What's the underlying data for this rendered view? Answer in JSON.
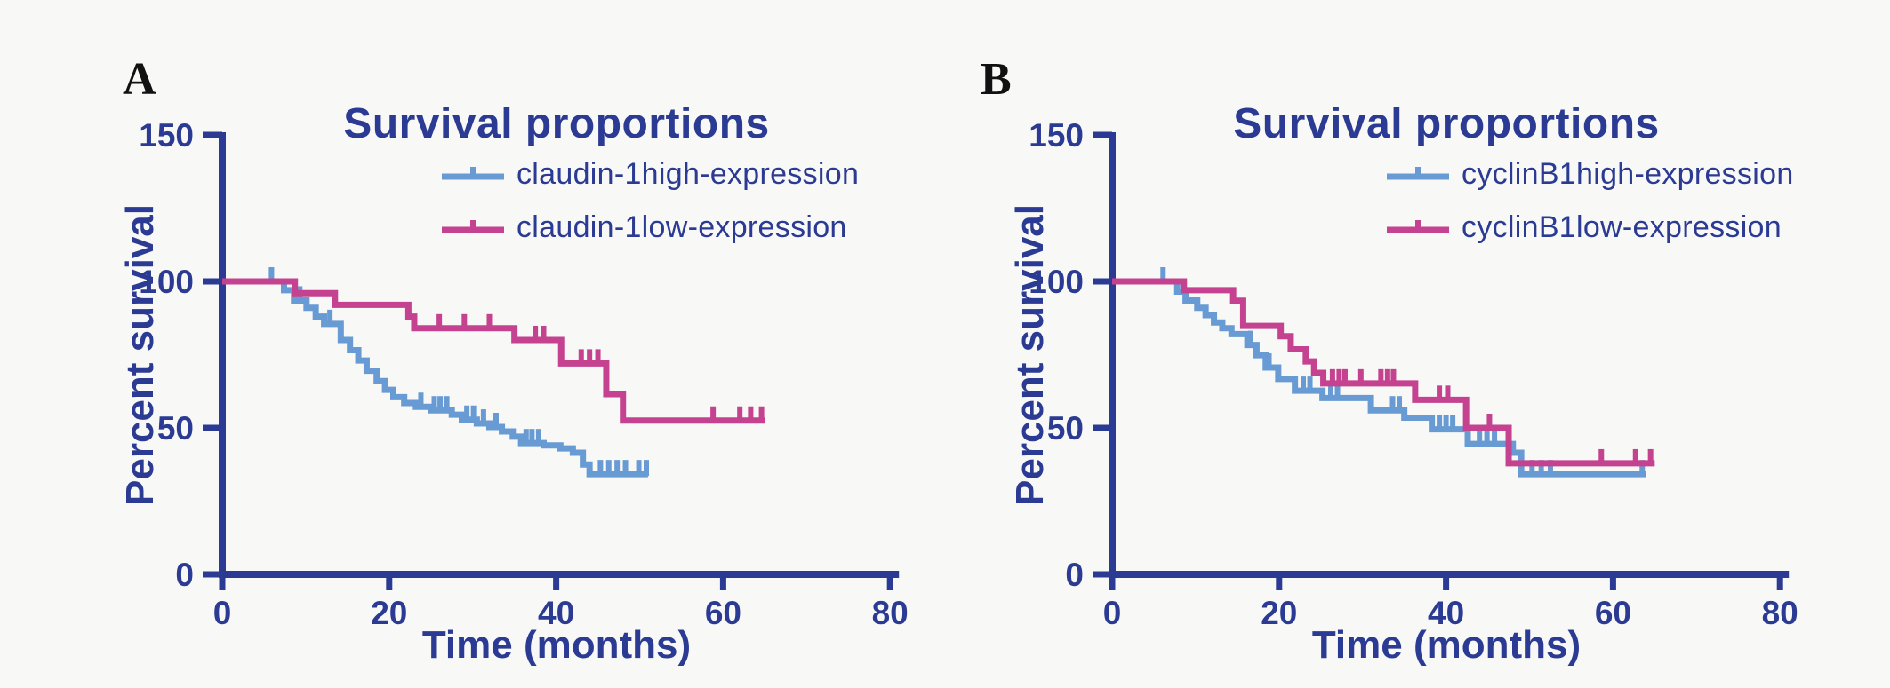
{
  "page": {
    "background": "#f8f8f6"
  },
  "colors": {
    "axis_text": "#2b3a92",
    "high_curve": "#689bd4",
    "low_curve": "#c4428f",
    "panel_label": "#111111",
    "background": "#f8f8f6"
  },
  "panels": [
    {
      "label": "A",
      "title": "Survival proportions",
      "y_label": "Percent survival",
      "x_label": "Time (months)",
      "legend": [
        {
          "name": "claudin-1high-expression",
          "series": "high_curve"
        },
        {
          "name": "claudin-1low-expression",
          "series": "low_curve"
        }
      ]
    },
    {
      "label": "B",
      "title": "Survival proportions",
      "y_label": "Percent survival",
      "x_label": "Time (months)",
      "legend": [
        {
          "name": "cyclinB1high-expression",
          "series": "high_curve"
        },
        {
          "name": "cyclinB1low-expression",
          "series": "low_curve"
        }
      ]
    }
  ],
  "chart_data": [
    {
      "type": "line",
      "subtype": "kaplan-meier-step",
      "title": "Survival proportions",
      "xlabel": "Time (months)",
      "ylabel": "Percent survival",
      "xlim": [
        0,
        80
      ],
      "ylim": [
        0,
        150
      ],
      "x_ticks": [
        0,
        20,
        40,
        60,
        80
      ],
      "y_ticks": [
        0,
        50,
        100,
        150
      ],
      "grid": false,
      "legend_position": "upper right",
      "series": [
        {
          "name": "claudin-1high-expression",
          "color": "high_curve",
          "points": [
            [
              0,
              100
            ],
            [
              7.4,
              97
            ],
            [
              8.6,
              93.5
            ],
            [
              10.1,
              91
            ],
            [
              11.2,
              88
            ],
            [
              12.2,
              85.5
            ],
            [
              14.2,
              80
            ],
            [
              15.3,
              76.5
            ],
            [
              16.3,
              73
            ],
            [
              17.3,
              69.5
            ],
            [
              18.5,
              66
            ],
            [
              19.5,
              63
            ],
            [
              20.5,
              60.5
            ],
            [
              21.8,
              58.5
            ],
            [
              23.2,
              57.2
            ],
            [
              25,
              56
            ],
            [
              27.5,
              54.5
            ],
            [
              28.7,
              52.8
            ],
            [
              30.5,
              51.5
            ],
            [
              32,
              50.3
            ],
            [
              33.5,
              48.8
            ],
            [
              34.8,
              47
            ],
            [
              35.8,
              44.8
            ],
            [
              38.5,
              44
            ],
            [
              40.5,
              43
            ],
            [
              42,
              41.5
            ],
            [
              43.2,
              37.5
            ],
            [
              44,
              34.2
            ],
            [
              51,
              34.2
            ]
          ],
          "censors": [
            [
              5.9,
              100
            ],
            [
              9.3,
              93.5
            ],
            [
              12.9,
              85.5
            ],
            [
              23.8,
              57.2
            ],
            [
              25.4,
              56
            ],
            [
              26.1,
              56
            ],
            [
              26.9,
              56
            ],
            [
              29.3,
              52.8
            ],
            [
              30.1,
              52.8
            ],
            [
              31.3,
              51.5
            ],
            [
              32.8,
              50.3
            ],
            [
              36.4,
              44.8
            ],
            [
              37.1,
              44.8
            ],
            [
              37.9,
              44.8
            ],
            [
              45.3,
              34.2
            ],
            [
              46.3,
              34.2
            ],
            [
              47.3,
              34.2
            ],
            [
              48.3,
              34.2
            ],
            [
              49.9,
              34.2
            ],
            [
              50.8,
              34.2
            ]
          ]
        },
        {
          "name": "claudin-1low-expression",
          "color": "low_curve",
          "points": [
            [
              0,
              100
            ],
            [
              8.7,
              96
            ],
            [
              13.5,
              92
            ],
            [
              22.3,
              88
            ],
            [
              23,
              84
            ],
            [
              35,
              80
            ],
            [
              40.6,
              72
            ],
            [
              46,
              61.5
            ],
            [
              48,
              52.5
            ],
            [
              65,
              52.5
            ]
          ],
          "censors": [
            [
              26,
              84
            ],
            [
              29,
              84
            ],
            [
              32,
              84
            ],
            [
              37.5,
              80
            ],
            [
              38.5,
              80
            ],
            [
              43,
              72
            ],
            [
              44,
              72
            ],
            [
              45,
              72
            ],
            [
              58.8,
              52.5
            ],
            [
              62,
              52.5
            ],
            [
              63.3,
              52.5
            ],
            [
              64.6,
              52.5
            ]
          ]
        }
      ]
    },
    {
      "type": "line",
      "subtype": "kaplan-meier-step",
      "title": "Survival proportions",
      "xlabel": "Time (months)",
      "ylabel": "Percent survival",
      "xlim": [
        0,
        80
      ],
      "ylim": [
        0,
        150
      ],
      "x_ticks": [
        0,
        20,
        40,
        60,
        80
      ],
      "y_ticks": [
        0,
        50,
        100,
        150
      ],
      "grid": false,
      "legend_position": "upper right",
      "series": [
        {
          "name": "cyclinB1high-expression",
          "color": "high_curve",
          "points": [
            [
              0,
              100
            ],
            [
              7.8,
              96.5
            ],
            [
              8.8,
              93.5
            ],
            [
              10.2,
              91
            ],
            [
              11.2,
              88.5
            ],
            [
              12.2,
              86
            ],
            [
              13.2,
              84
            ],
            [
              14.3,
              82
            ],
            [
              16.2,
              78.3
            ],
            [
              17.3,
              74.8
            ],
            [
              18.4,
              70.6
            ],
            [
              19.9,
              66.7
            ],
            [
              21.9,
              62.7
            ],
            [
              25.2,
              60.2
            ],
            [
              31,
              56
            ],
            [
              35,
              53.5
            ],
            [
              38.3,
              49.5
            ],
            [
              42.6,
              44.5
            ],
            [
              48,
              41.5
            ],
            [
              49,
              34.2
            ],
            [
              64,
              34.2
            ]
          ],
          "censors": [
            [
              6.1,
              100
            ],
            [
              16.6,
              78.3
            ],
            [
              18.8,
              70.6
            ],
            [
              22.9,
              62.7
            ],
            [
              23.7,
              62.7
            ],
            [
              26.2,
              60.2
            ],
            [
              27,
              60.2
            ],
            [
              33.6,
              56
            ],
            [
              34.4,
              56
            ],
            [
              39.2,
              49.5
            ],
            [
              40,
              49.5
            ],
            [
              40.8,
              49.5
            ],
            [
              44,
              44.5
            ],
            [
              44.9,
              44.5
            ],
            [
              45.8,
              44.5
            ],
            [
              50.3,
              34.2
            ],
            [
              51.4,
              34.2
            ],
            [
              52.5,
              34.2
            ],
            [
              63.5,
              34.2
            ]
          ]
        },
        {
          "name": "cyclinB1low-expression",
          "color": "low_curve",
          "points": [
            [
              0,
              100
            ],
            [
              8.6,
              97
            ],
            [
              14.5,
              93.4
            ],
            [
              15.7,
              84.8
            ],
            [
              20.2,
              81.3
            ],
            [
              21.4,
              76.8
            ],
            [
              23.2,
              72.7
            ],
            [
              24.2,
              68.8
            ],
            [
              25.3,
              65.2
            ],
            [
              36.3,
              59.6
            ],
            [
              42.4,
              50
            ],
            [
              47.5,
              37.9
            ],
            [
              65,
              37.9
            ]
          ],
          "censors": [
            [
              26.4,
              65.2
            ],
            [
              27.2,
              65.2
            ],
            [
              27.9,
              65.2
            ],
            [
              29.8,
              65.2
            ],
            [
              32.2,
              65.2
            ],
            [
              33,
              65.2
            ],
            [
              33.7,
              65.2
            ],
            [
              39.2,
              59.6
            ],
            [
              40.2,
              59.6
            ],
            [
              45.2,
              50
            ],
            [
              58.6,
              37.9
            ],
            [
              62.7,
              37.9
            ],
            [
              64.5,
              37.9
            ]
          ]
        }
      ]
    }
  ]
}
